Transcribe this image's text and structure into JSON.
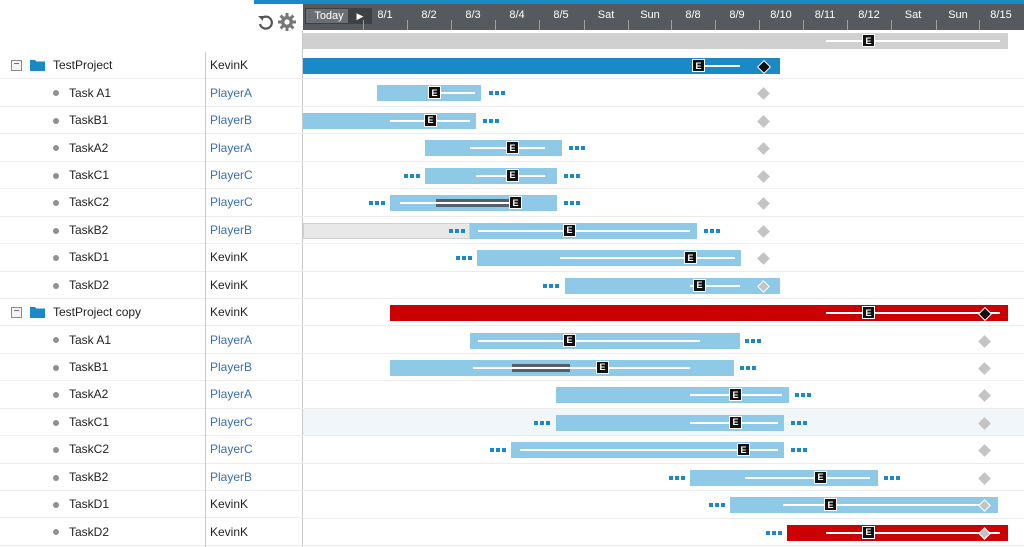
{
  "toolbar": {
    "today_label": "Today",
    "next_label": "▶",
    "undo_icon": "undo-icon",
    "settings_icon": "gear-icon"
  },
  "timeline": {
    "dates": [
      "8/1",
      "8/2",
      "8/3",
      "8/4",
      "8/5",
      "Sat",
      "Sun",
      "8/8",
      "8/9",
      "8/10",
      "8/11",
      "8/12",
      "Sat",
      "Sun",
      "8/15"
    ]
  },
  "tree": {
    "rows": [
      {
        "type": "project",
        "name": "TestProject",
        "owner": "KevinK"
      },
      {
        "type": "task",
        "name": "Task A1",
        "owner": "PlayerA"
      },
      {
        "type": "task",
        "name": "TaskB1",
        "owner": "PlayerB"
      },
      {
        "type": "task",
        "name": "TaskA2",
        "owner": "PlayerA"
      },
      {
        "type": "task",
        "name": "TaskC1",
        "owner": "PlayerC"
      },
      {
        "type": "task",
        "name": "TaskC2",
        "owner": "PlayerC"
      },
      {
        "type": "task",
        "name": "TaskB2",
        "owner": "PlayerB"
      },
      {
        "type": "task",
        "name": "TaskD1",
        "owner": "KevinK"
      },
      {
        "type": "task",
        "name": "TaskD2",
        "owner": "KevinK"
      },
      {
        "type": "project",
        "name": "TestProject copy",
        "owner": "KevinK"
      },
      {
        "type": "task",
        "name": "Task A1",
        "owner": "PlayerA"
      },
      {
        "type": "task",
        "name": "TaskB1",
        "owner": "PlayerB"
      },
      {
        "type": "task",
        "name": "TaskA2",
        "owner": "PlayerA"
      },
      {
        "type": "task",
        "name": "TaskC1",
        "owner": "PlayerC"
      },
      {
        "type": "task",
        "name": "TaskC2",
        "owner": "PlayerC"
      },
      {
        "type": "task",
        "name": "TaskB2",
        "owner": "PlayerB"
      },
      {
        "type": "task",
        "name": "TaskD1",
        "owner": "KevinK"
      },
      {
        "type": "task",
        "name": "TaskD2",
        "owner": "KevinK"
      }
    ]
  },
  "markers": {
    "estimate_label": "E"
  },
  "colors": {
    "accent": "#1a8ac6",
    "task_bar": "#8ecae8",
    "late_project": "#cc0000",
    "player_text": "#3a6fb0"
  }
}
